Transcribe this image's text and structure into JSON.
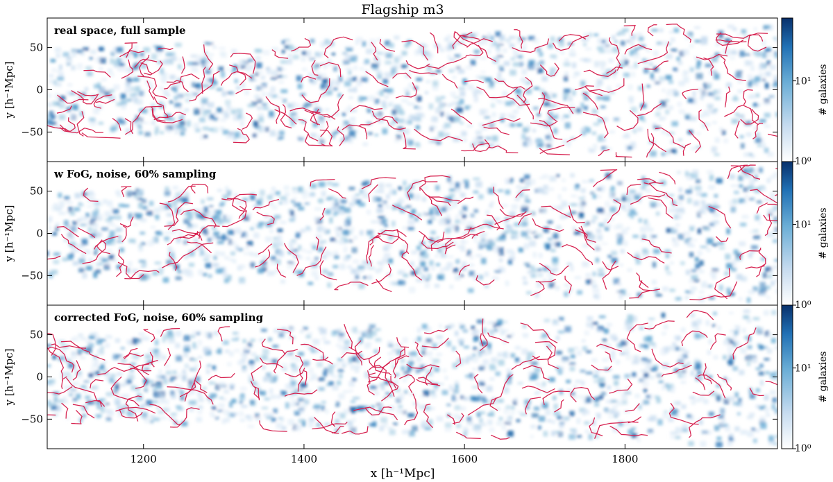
{
  "title": "Flagship m3",
  "chart_data": {
    "type": "heatmap",
    "title": "Flagship m3",
    "xlabel": "x [h⁻¹Mpc]",
    "xlim": [
      1080,
      1990
    ],
    "ylim": [
      -85,
      85
    ],
    "xticks": [
      1200,
      1400,
      1600,
      1800
    ],
    "yticks": [
      -50,
      0,
      50
    ],
    "colormap": [
      "#ffffff",
      "#08306b"
    ],
    "overlay_color": "#d6204e",
    "colorbar": {
      "label": "# galaxies",
      "scale": "log",
      "range": [
        1,
        60
      ],
      "ticks": [
        {
          "v": 1,
          "t": "10⁰"
        },
        {
          "v": 10,
          "t": "10¹"
        }
      ]
    },
    "panels": [
      {
        "label": "real space, full sample",
        "ylabel": "y [h⁻¹Mpc]",
        "seed": 11,
        "filaments": 150
      },
      {
        "label": "w FoG, noise, 60% sampling",
        "ylabel": "y [h⁻¹Mpc]",
        "seed": 23,
        "filaments": 120
      },
      {
        "label": "corrected FoG, noise, 60% sampling",
        "ylabel": "y [h⁻¹Mpc]",
        "seed": 37,
        "filaments": 130
      }
    ]
  }
}
